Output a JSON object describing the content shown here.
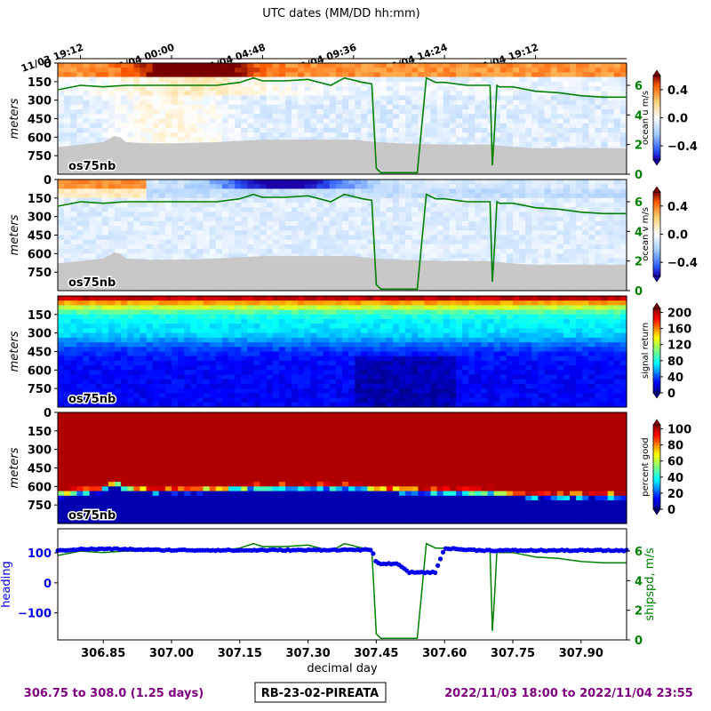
{
  "top_axis": {
    "label": "UTC dates (MM/DD hh:mm)",
    "ticks": [
      {
        "day": 306.8,
        "label": "11/03 19:12"
      },
      {
        "day": 307.0,
        "label": "11/04 00:00"
      },
      {
        "day": 307.2,
        "label": "11/04 04:48"
      },
      {
        "day": 307.4,
        "label": "11/04 09:36"
      },
      {
        "day": 307.6,
        "label": "11/04 14:24"
      },
      {
        "day": 307.8,
        "label": "11/04 19:12"
      }
    ]
  },
  "colors": {
    "ship_speed": "#008000",
    "heading": "#0000ee",
    "footer_text": "#800080",
    "bottom_mask": "#c8c8c8"
  },
  "footer": {
    "left": "306.75 to 308.0 (1.25 days)",
    "center": "RB-23-02-PIREATA",
    "right": "2022/11/03 18:00 to 2022/11/04 23:55"
  },
  "chart_data": [
    {
      "type": "heatmap",
      "ylabel": "meters",
      "yticks": [
        "0",
        "150",
        "300",
        "450",
        "600",
        "750"
      ],
      "ylim": [
        0,
        900
      ],
      "xlim": [
        306.75,
        308.0
      ],
      "instrument_label": "os75nb",
      "colorbar": {
        "label": "ocean u m/s",
        "ticks": [
          "0.4",
          "0.0",
          "−0.4"
        ],
        "range": [
          -0.6,
          0.6
        ],
        "colormap": "blue-white-red"
      },
      "right_axis": {
        "label": "",
        "ticks": [
          "0",
          "2",
          "4",
          "6"
        ],
        "range": [
          0,
          7.5
        ]
      },
      "ship_speed_overlay": true
    },
    {
      "type": "heatmap",
      "ylabel": "meters",
      "yticks": [
        "0",
        "150",
        "300",
        "450",
        "600",
        "750"
      ],
      "ylim": [
        0,
        900
      ],
      "xlim": [
        306.75,
        308.0
      ],
      "instrument_label": "os75nb",
      "colorbar": {
        "label": "ocean v m/s",
        "ticks": [
          "0.4",
          "0.0",
          "−0.4"
        ],
        "range": [
          -0.6,
          0.6
        ],
        "colormap": "blue-white-red"
      },
      "right_axis": {
        "label": "",
        "ticks": [
          "0",
          "2",
          "4",
          "6"
        ],
        "range": [
          0,
          7.5
        ]
      },
      "ship_speed_overlay": true
    },
    {
      "type": "heatmap",
      "ylabel": "meters",
      "yticks": [
        "150",
        "300",
        "450",
        "600",
        "750"
      ],
      "ylim": [
        0,
        900
      ],
      "xlim": [
        306.75,
        308.0
      ],
      "instrument_label": "os75nb",
      "colorbar": {
        "label": "signal return",
        "ticks": [
          "200",
          "160",
          "120",
          "80",
          "40",
          "0"
        ],
        "range": [
          0,
          210
        ],
        "colormap": "jet"
      }
    },
    {
      "type": "heatmap",
      "ylabel": "meters",
      "yticks": [
        "0",
        "150",
        "300",
        "450",
        "600",
        "750"
      ],
      "ylim": [
        0,
        900
      ],
      "xlim": [
        306.75,
        308.0
      ],
      "instrument_label": "os75nb",
      "colorbar": {
        "label": "percent good",
        "ticks": [
          "100",
          "80",
          "60",
          "40",
          "20",
          "0"
        ],
        "range": [
          0,
          105
        ],
        "colormap": "jet"
      }
    },
    {
      "type": "line",
      "xlabel": "decimal day",
      "xticks": [
        "306.85",
        "307.00",
        "307.15",
        "307.30",
        "307.45",
        "307.60",
        "307.75",
        "307.90"
      ],
      "xlim": [
        306.75,
        308.0
      ],
      "left_axis": {
        "label": "heading",
        "ticks": [
          "100",
          "0",
          "−100"
        ],
        "range": [
          -190,
          180
        ]
      },
      "right_axis": {
        "label": "shipspd, m/s",
        "ticks": [
          "0",
          "2",
          "4",
          "6"
        ],
        "range": [
          0,
          7.5
        ]
      },
      "series": [
        {
          "key": "heading",
          "x": [
            306.75,
            306.8,
            306.85,
            306.9,
            306.95,
            307.0,
            307.05,
            307.1,
            307.15,
            307.2,
            307.25,
            307.3,
            307.35,
            307.4,
            307.44,
            307.45,
            307.48,
            307.5,
            307.52,
            307.54,
            307.56,
            307.58,
            307.6,
            307.65,
            307.7,
            307.75,
            307.8,
            307.85,
            307.9,
            307.95,
            308.0
          ],
          "values": [
            108,
            112,
            113,
            112,
            110,
            109,
            109,
            109,
            108,
            109,
            109,
            109,
            110,
            110,
            110,
            65,
            63,
            62,
            35,
            35,
            35,
            35,
            116,
            110,
            108,
            108,
            108,
            108,
            108,
            108,
            108
          ]
        },
        {
          "key": "ship_speed",
          "x": [
            306.75,
            306.8,
            306.85,
            306.9,
            306.95,
            307.0,
            307.05,
            307.1,
            307.15,
            307.18,
            307.2,
            307.25,
            307.3,
            307.35,
            307.38,
            307.42,
            307.44,
            307.45,
            307.46,
            307.5,
            307.52,
            307.54,
            307.56,
            307.58,
            307.6,
            307.65,
            307.7,
            307.705,
            307.71,
            307.715,
            307.72,
            307.75,
            307.8,
            307.85,
            307.9,
            307.95,
            308.0
          ],
          "values": [
            5.7,
            6.0,
            5.9,
            6.0,
            6.0,
            6.0,
            6.0,
            6.0,
            6.2,
            6.5,
            6.3,
            6.3,
            6.4,
            6.0,
            6.5,
            6.2,
            6.1,
            0.4,
            0.1,
            0.1,
            0.1,
            0.1,
            6.5,
            6.2,
            6.2,
            6.0,
            6.0,
            0.6,
            3.0,
            6.0,
            5.9,
            5.9,
            5.6,
            5.5,
            5.3,
            5.2,
            5.2
          ]
        }
      ]
    }
  ]
}
